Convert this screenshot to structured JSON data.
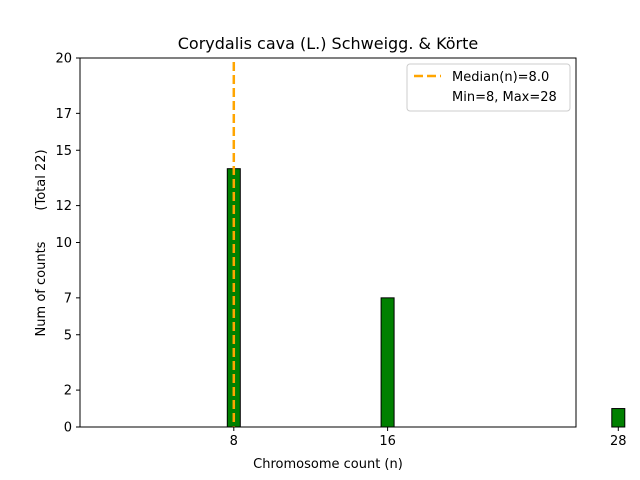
{
  "chart_data": {
    "type": "bar",
    "title": "Corydalis cava (L.) Schweigg. & Körte",
    "xlabel": "Chromosome count (n)",
    "ylabel": "Num of counts",
    "ylabel_total": "(Total 22)",
    "bins": [
      {
        "x": 8,
        "count": 14
      },
      {
        "x": 16,
        "count": 7
      },
      {
        "x": 28,
        "count": 1
      }
    ],
    "x_ticks": [
      8,
      16,
      28
    ],
    "x_tick_labels": [
      "8",
      "16",
      "28"
    ],
    "y_ticks": [
      0,
      2,
      5,
      7,
      10,
      12,
      15,
      17,
      20
    ],
    "y_tick_labels": [
      "0",
      "2",
      "5",
      "7",
      "10",
      "12",
      "15",
      "17",
      "20"
    ],
    "xlim": [
      0,
      25.8
    ],
    "ylim": [
      0,
      20
    ],
    "median": 8.0,
    "legend": {
      "placement": "top-right",
      "entries": [
        "Median(n)=8.0",
        "Min=8, Max=28"
      ]
    },
    "colors": {
      "bar": "#008000",
      "bar_edge": "#000000",
      "median_line": "#FFA500",
      "axes": "#000000",
      "background": "#ffffff"
    },
    "grid": false
  }
}
